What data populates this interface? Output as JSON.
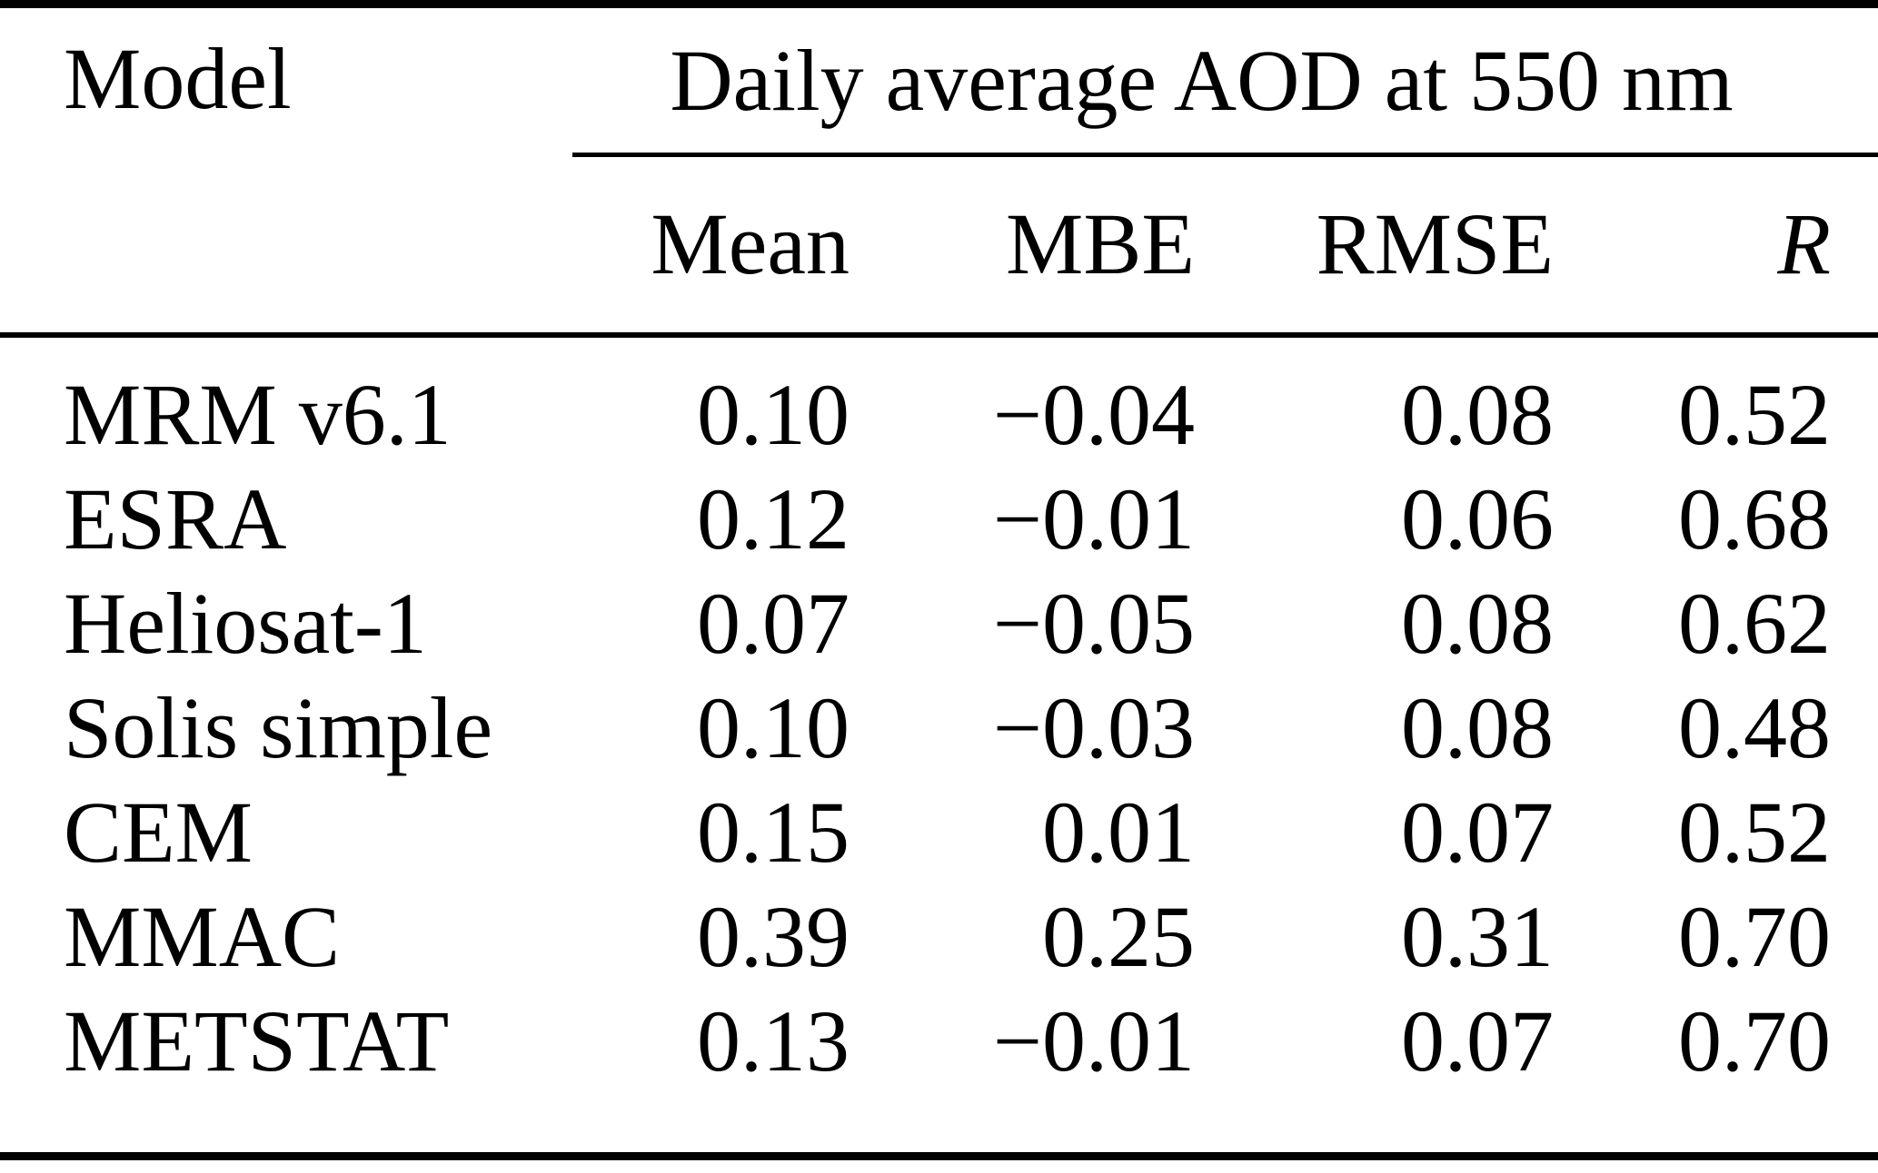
{
  "table": {
    "model_header": "Model",
    "span_header": "Daily average AOD at 550 nm",
    "sub_headers": [
      "Mean",
      "MBE",
      "RMSE",
      "R"
    ],
    "rows": [
      {
        "model": "MRM v6.1",
        "mean": "0.10",
        "mbe": "−0.04",
        "rmse": "0.08",
        "r": "0.52"
      },
      {
        "model": "ESRA",
        "mean": "0.12",
        "mbe": "−0.01",
        "rmse": "0.06",
        "r": "0.68"
      },
      {
        "model": "Heliosat-1",
        "mean": "0.07",
        "mbe": "−0.05",
        "rmse": "0.08",
        "r": "0.62"
      },
      {
        "model": "Solis simple",
        "mean": "0.10",
        "mbe": "−0.03",
        "rmse": "0.08",
        "r": "0.48"
      },
      {
        "model": "CEM",
        "mean": "0.15",
        "mbe": "0.01",
        "rmse": "0.07",
        "r": "0.52"
      },
      {
        "model": "MMAC",
        "mean": "0.39",
        "mbe": "0.25",
        "rmse": "0.31",
        "r": "0.70"
      },
      {
        "model": "METSTAT",
        "mean": "0.13",
        "mbe": "−0.01",
        "rmse": "0.07",
        "r": "0.70"
      }
    ]
  },
  "chart_data": {
    "type": "table",
    "title": "Daily average AOD at 550 nm",
    "columns": [
      "Model",
      "Mean",
      "MBE",
      "RMSE",
      "R"
    ],
    "rows": [
      [
        "MRM v6.1",
        0.1,
        -0.04,
        0.08,
        0.52
      ],
      [
        "ESRA",
        0.12,
        -0.01,
        0.06,
        0.68
      ],
      [
        "Heliosat-1",
        0.07,
        -0.05,
        0.08,
        0.62
      ],
      [
        "Solis simple",
        0.1,
        -0.03,
        0.08,
        0.48
      ],
      [
        "CEM",
        0.15,
        0.01,
        0.07,
        0.52
      ],
      [
        "MMAC",
        0.39,
        0.25,
        0.31,
        0.7
      ],
      [
        "METSTAT",
        0.13,
        -0.01,
        0.07,
        0.7
      ]
    ]
  },
  "colors": {
    "background": "#ffffff",
    "text": "#000000",
    "rule": "#000000"
  }
}
